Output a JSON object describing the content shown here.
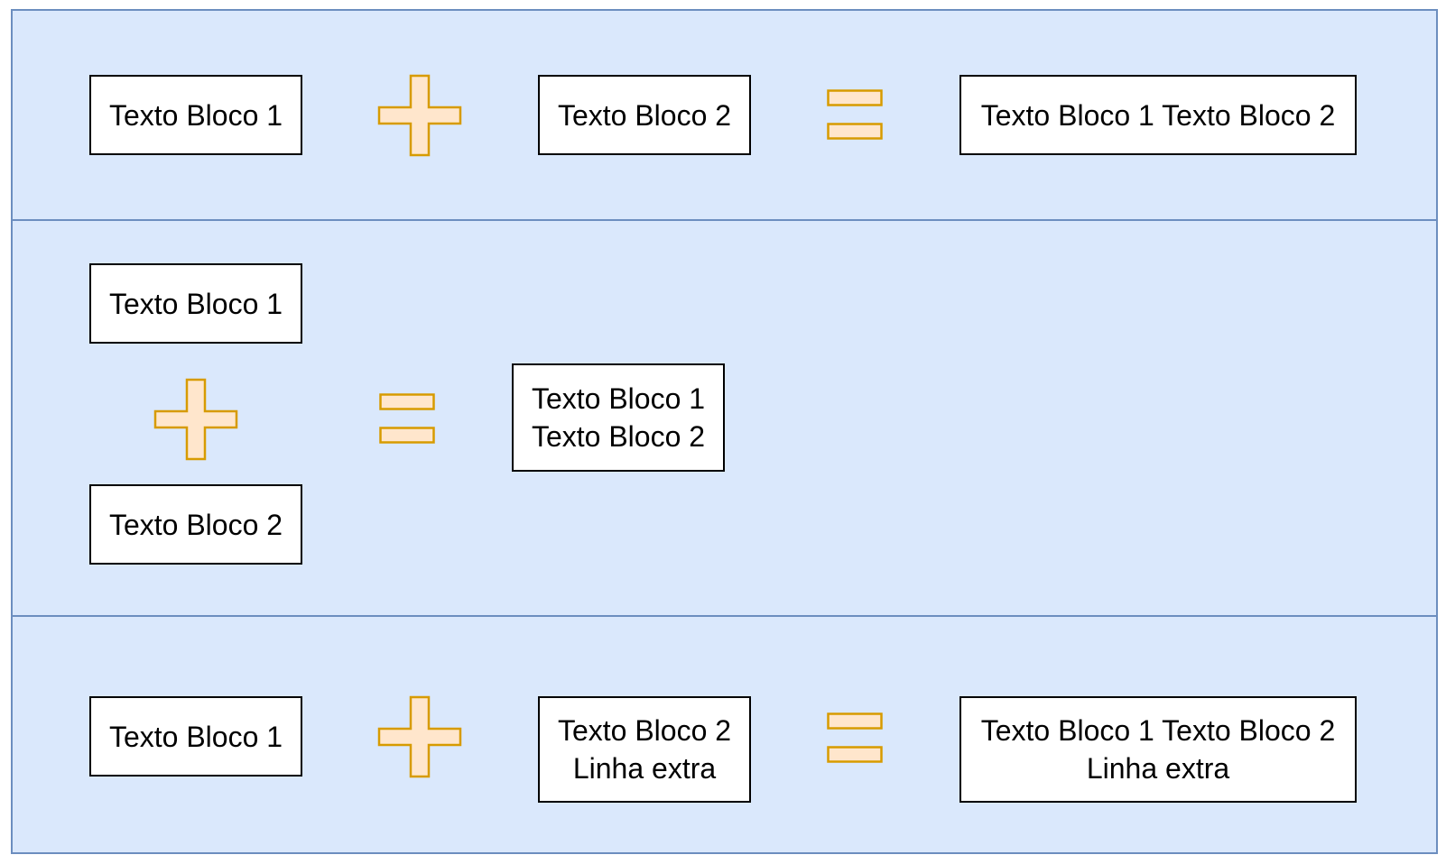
{
  "colors": {
    "band_fill": "#dae8fc",
    "band_border": "#6c8ebf",
    "operator_fill": "#ffe6cc",
    "operator_stroke": "#d79b00",
    "box_fill": "#ffffff",
    "box_border": "#000000"
  },
  "row1": {
    "block1": "Texto Bloco 1",
    "block2": "Texto Bloco 2",
    "result": "Texto Bloco 1 Texto Bloco 2"
  },
  "row2": {
    "block1": "Texto Bloco 1",
    "block2": "Texto Bloco 2",
    "result_line1": "Texto Bloco 1",
    "result_line2": "Texto Bloco 2"
  },
  "row3": {
    "block1": "Texto Bloco 1",
    "block2_line1": "Texto Bloco 2",
    "block2_line2": "Linha extra",
    "result_line1": "Texto Bloco 1 Texto Bloco 2",
    "result_line2": "Linha extra"
  },
  "icons": {
    "plus": "plus-icon",
    "equals": "equals-icon"
  }
}
